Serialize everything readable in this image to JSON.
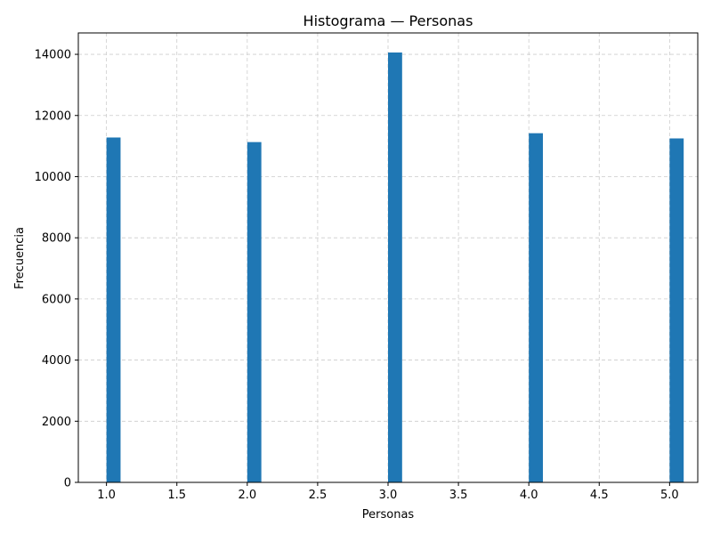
{
  "chart_data": {
    "type": "bar",
    "title": "Histograma — Personas",
    "xlabel": "Personas",
    "ylabel": "Frecuencia",
    "xlim": [
      0.8,
      5.2
    ],
    "ylim": [
      0,
      14700
    ],
    "bin_width": 0.1,
    "x": [
      1.0,
      2.0,
      3.0,
      4.0,
      5.0
    ],
    "values": [
      11280,
      11130,
      14060,
      11420,
      11250
    ],
    "xticks": [
      1.0,
      1.5,
      2.0,
      2.5,
      3.0,
      3.5,
      4.0,
      4.5,
      5.0
    ],
    "xtick_labels": [
      "1.0",
      "1.5",
      "2.0",
      "2.5",
      "3.0",
      "3.5",
      "4.0",
      "4.5",
      "5.0"
    ],
    "yticks": [
      0,
      2000,
      4000,
      6000,
      8000,
      10000,
      12000,
      14000
    ],
    "ytick_labels": [
      "0",
      "2000",
      "4000",
      "6000",
      "8000",
      "10000",
      "12000",
      "14000"
    ],
    "grid": true,
    "bar_color": "#1f77b4",
    "grid_color": "#cccccc"
  }
}
